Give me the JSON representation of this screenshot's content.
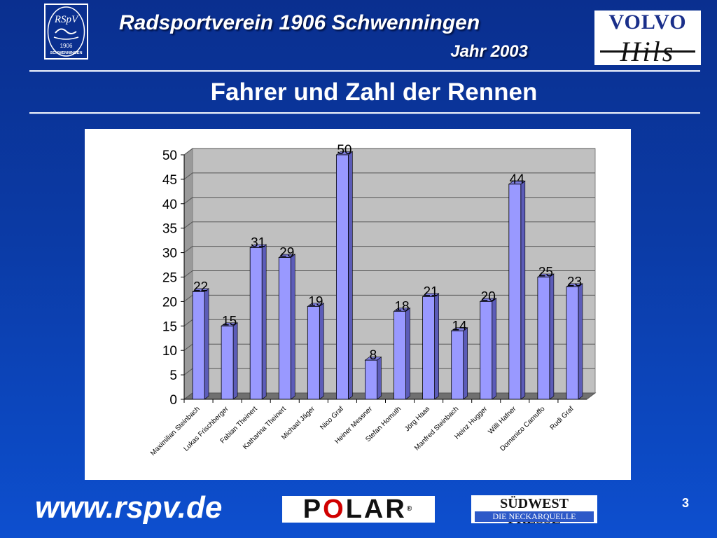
{
  "header": {
    "logo_left": {
      "line1": "RSpV",
      "line2": "1906",
      "line3": "SCHWENNINGEN"
    },
    "org_name": "Radsportverein 1906 Schwenningen",
    "year": "Jahr 2003",
    "logo_right": {
      "top": "VOLVO",
      "bottom": "Hils"
    }
  },
  "slide_title": "Fahrer und Zahl der Rennen",
  "chart_data": {
    "type": "bar",
    "title": "",
    "xlabel": "",
    "ylabel": "",
    "ylim": [
      0,
      50
    ],
    "yticks": [
      0,
      5,
      10,
      15,
      20,
      25,
      30,
      35,
      40,
      45,
      50
    ],
    "grid": true,
    "three_d": true,
    "bar_color": "#9999ff",
    "categories": [
      "Maximilian Steinbach",
      "Lukas Frischberger",
      "Fabian Theinert",
      "Katharina Theinert",
      "Michael Jäger",
      "Nico Graf",
      "Heiner Messner",
      "Stefan Homuth",
      "Jörg Haas",
      "Manfred Steinbach",
      "Heinz Hugger",
      "Willi Hafner",
      "Domenico Camuffo",
      "Rudi Graf"
    ],
    "values": [
      22,
      15,
      31,
      29,
      19,
      50,
      8,
      18,
      21,
      14,
      20,
      44,
      25,
      23
    ]
  },
  "footer": {
    "url": "www.rspv.de",
    "polar": {
      "p1": "P",
      "o": "O",
      "p2": "LAR",
      "reg": "®"
    },
    "sponsor2": {
      "top": "SÜDWEST PRESSE",
      "bottom": "DIE NECKARQUELLE"
    },
    "page_number": "3"
  }
}
